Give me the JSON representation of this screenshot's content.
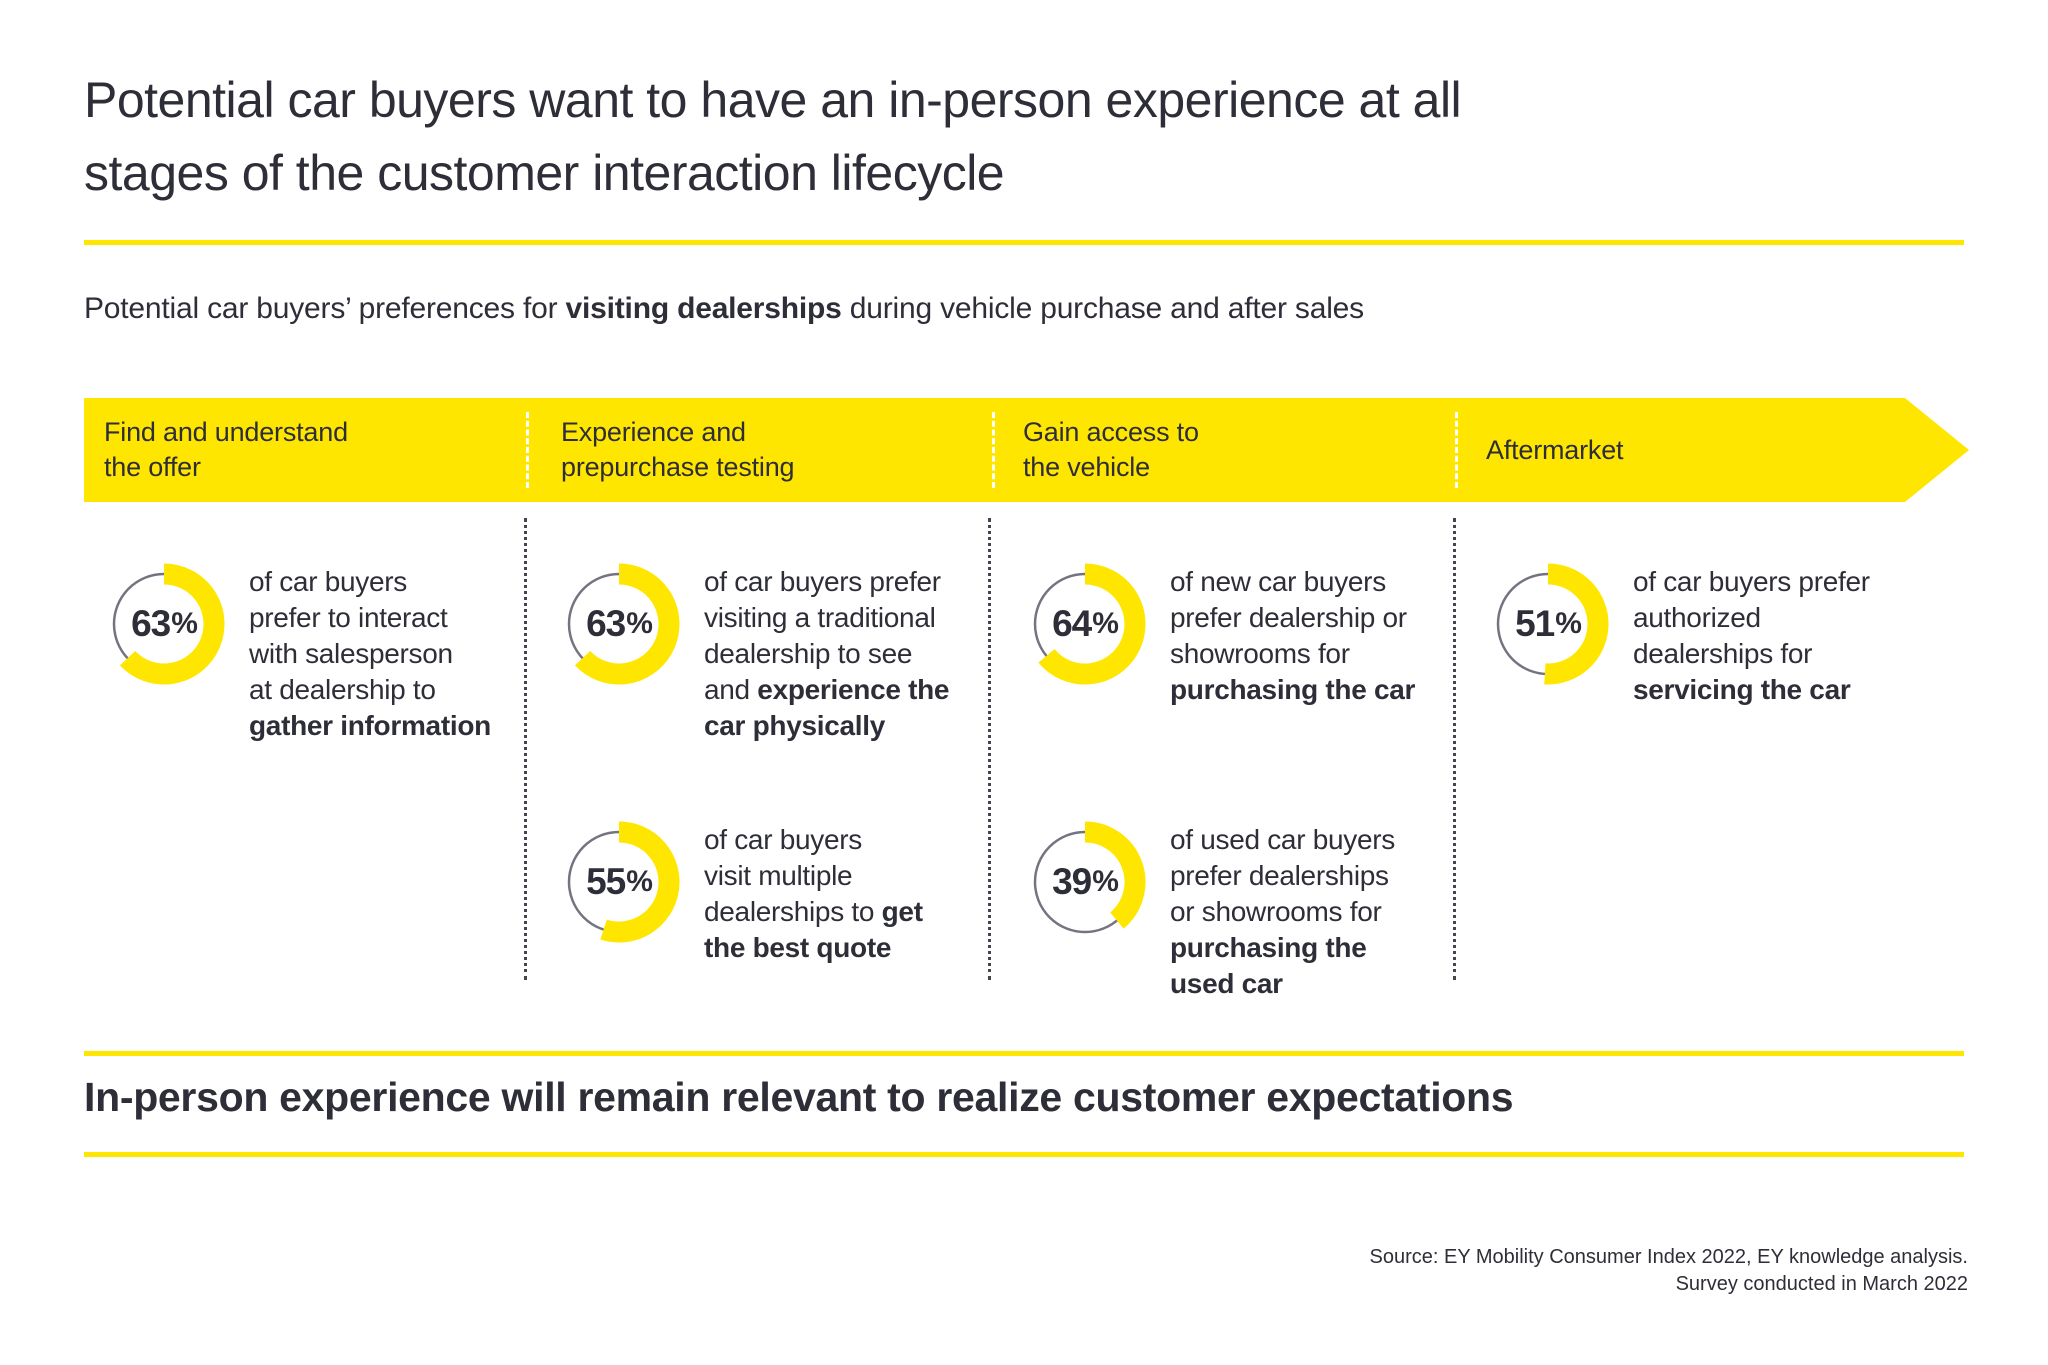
{
  "theme": {
    "accent_color": "#ffe600",
    "ink_color": "#2e2e38",
    "track_color": "#747480",
    "background_color": "#ffffff"
  },
  "title": {
    "line1": "Potential car buyers want to have an in-person experience at all",
    "line2": "stages of the customer interaction lifecycle"
  },
  "subtitle": {
    "pre": "Potential car buyers’ preferences for ",
    "bold": "visiting dealerships",
    "post": " during vehicle purchase and after sales"
  },
  "stages": [
    {
      "line1": "Find and understand",
      "line2": "the offer"
    },
    {
      "line1": "Experience and",
      "line2": "prepurchase testing"
    },
    {
      "line1": "Gain access to",
      "line2": "the vehicle"
    },
    {
      "line1": "Aftermarket",
      "line2": ""
    }
  ],
  "stats": [
    {
      "stage": 0,
      "row": 0,
      "pct": 63,
      "lines": [
        [
          {
            "t": "of car buyers"
          }
        ],
        [
          {
            "t": "prefer to interact"
          }
        ],
        [
          {
            "t": "with salesperson"
          }
        ],
        [
          {
            "t": "at dealership to"
          }
        ],
        [
          {
            "t": "gather information",
            "b": true
          }
        ]
      ]
    },
    {
      "stage": 1,
      "row": 0,
      "pct": 63,
      "lines": [
        [
          {
            "t": "of car buyers prefer"
          }
        ],
        [
          {
            "t": "visiting a traditional"
          }
        ],
        [
          {
            "t": "dealership to see"
          }
        ],
        [
          {
            "t": "and "
          },
          {
            "t": "experience the",
            "b": true
          }
        ],
        [
          {
            "t": "car physically",
            "b": true
          }
        ]
      ]
    },
    {
      "stage": 2,
      "row": 0,
      "pct": 64,
      "lines": [
        [
          {
            "t": "of new car buyers"
          }
        ],
        [
          {
            "t": "prefer dealership or"
          }
        ],
        [
          {
            "t": "showrooms for"
          }
        ],
        [
          {
            "t": "purchasing the car",
            "b": true
          }
        ]
      ]
    },
    {
      "stage": 3,
      "row": 0,
      "pct": 51,
      "lines": [
        [
          {
            "t": "of car buyers prefer"
          }
        ],
        [
          {
            "t": "authorized"
          }
        ],
        [
          {
            "t": "dealerships for"
          }
        ],
        [
          {
            "t": "servicing the car",
            "b": true
          }
        ]
      ]
    },
    {
      "stage": 1,
      "row": 1,
      "pct": 55,
      "lines": [
        [
          {
            "t": "of car buyers"
          }
        ],
        [
          {
            "t": "visit multiple"
          }
        ],
        [
          {
            "t": "dealerships to "
          },
          {
            "t": "get",
            "b": true
          }
        ],
        [
          {
            "t": "the best quote",
            "b": true
          }
        ]
      ]
    },
    {
      "stage": 2,
      "row": 1,
      "pct": 39,
      "lines": [
        [
          {
            "t": "of used car buyers"
          }
        ],
        [
          {
            "t": "prefer dealerships"
          }
        ],
        [
          {
            "t": "or showrooms for"
          }
        ],
        [
          {
            "t": "purchasing the",
            "b": true
          }
        ],
        [
          {
            "t": "used car",
            "b": true
          }
        ]
      ]
    }
  ],
  "bottom_heading": "In-person experience will remain relevant to realize customer expectations",
  "source": {
    "line1": "Source: EY Mobility Consumer Index 2022, EY knowledge analysis.",
    "line2": "Survey conducted in March 2022"
  },
  "chart_data": {
    "type": "pie",
    "subtype": "donut-progress",
    "title": "Potential car buyers’ preferences for visiting dealerships during vehicle purchase and after sales",
    "unit": "%",
    "series": [
      {
        "name": "Find and understand the offer",
        "value": 63,
        "label": "of car buyers prefer to interact with salesperson at dealership to gather information"
      },
      {
        "name": "Experience and prepurchase testing",
        "value": 63,
        "label": "of car buyers prefer visiting a traditional dealership to see and experience the car physically"
      },
      {
        "name": "Experience and prepurchase testing",
        "value": 55,
        "label": "of car buyers visit multiple dealerships to get the best quote"
      },
      {
        "name": "Gain access to the vehicle",
        "value": 64,
        "label": "of new car buyers prefer dealership or showrooms for purchasing the car"
      },
      {
        "name": "Gain access to the vehicle",
        "value": 39,
        "label": "of used car buyers prefer dealerships or showrooms for purchasing the used car"
      },
      {
        "name": "Aftermarket",
        "value": 51,
        "label": "of car buyers prefer authorized dealerships for servicing the car"
      }
    ],
    "colors": {
      "fill": "#ffe600",
      "track": "#747480"
    },
    "legend_position": "none",
    "grid": false
  }
}
